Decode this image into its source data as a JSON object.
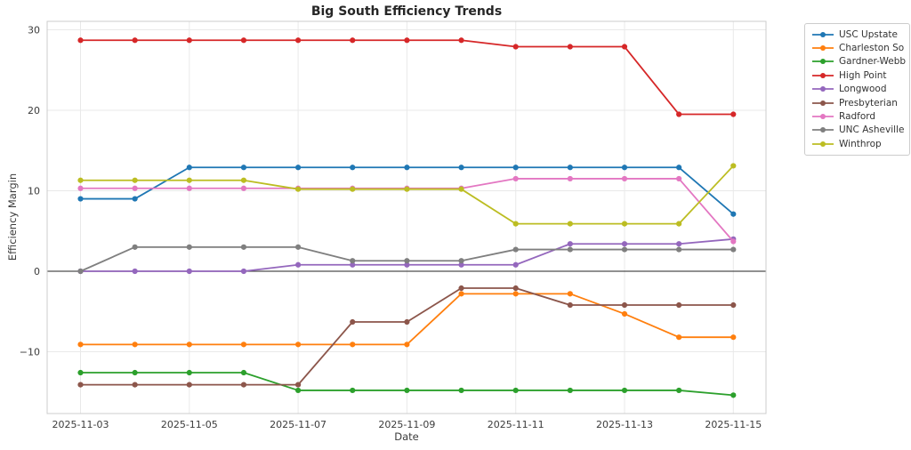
{
  "chart_data": {
    "type": "line",
    "title": "Big South Efficiency Trends",
    "xlabel": "Date",
    "ylabel": "Efficiency Margin",
    "x": [
      "2025-11-03",
      "2025-11-04",
      "2025-11-05",
      "2025-11-06",
      "2025-11-07",
      "2025-11-08",
      "2025-11-09",
      "2025-11-10",
      "2025-11-11",
      "2025-11-12",
      "2025-11-13",
      "2025-11-14",
      "2025-11-15"
    ],
    "x_tick_indices": [
      0,
      2,
      4,
      6,
      8,
      10,
      12
    ],
    "x_tick_labels": [
      "2025-11-03",
      "2025-11-05",
      "2025-11-07",
      "2025-11-09",
      "2025-11-11",
      "2025-11-13",
      "2025-11-15"
    ],
    "y_ticks": [
      30,
      20,
      10,
      0,
      -10
    ],
    "y_tick_labels": [
      "30",
      "20",
      "10",
      "0",
      "−10"
    ],
    "ylim": [
      -17.7,
      31.1
    ],
    "grid": true,
    "zero_line": true,
    "legend_position": "outside-right",
    "series": [
      {
        "name": "USC Upstate",
        "color": "#1f77b4",
        "values": [
          9.0,
          9.0,
          12.9,
          12.9,
          12.9,
          12.9,
          12.9,
          12.9,
          12.9,
          12.9,
          12.9,
          12.9,
          7.1
        ]
      },
      {
        "name": "Charleston So",
        "color": "#ff7f0e",
        "values": [
          -9.1,
          -9.1,
          -9.1,
          -9.1,
          -9.1,
          -9.1,
          -9.1,
          -2.8,
          -2.8,
          -2.8,
          -5.3,
          -8.2,
          -8.2
        ]
      },
      {
        "name": "Gardner-Webb",
        "color": "#2ca02c",
        "values": [
          -12.6,
          -12.6,
          -12.6,
          -12.6,
          -14.8,
          -14.8,
          -14.8,
          -14.8,
          -14.8,
          -14.8,
          -14.8,
          -14.8,
          -15.4
        ]
      },
      {
        "name": "High Point",
        "color": "#d62728",
        "values": [
          28.7,
          28.7,
          28.7,
          28.7,
          28.7,
          28.7,
          28.7,
          28.7,
          27.9,
          27.9,
          27.9,
          19.5,
          19.5
        ]
      },
      {
        "name": "Longwood",
        "color": "#9467bd",
        "values": [
          0.0,
          0.0,
          0.0,
          0.0,
          0.8,
          0.8,
          0.8,
          0.8,
          0.8,
          3.4,
          3.4,
          3.4,
          4.0
        ]
      },
      {
        "name": "Presbyterian",
        "color": "#8c564b",
        "values": [
          -14.1,
          -14.1,
          -14.1,
          -14.1,
          -14.1,
          -6.3,
          -6.3,
          -2.1,
          -2.1,
          -4.2,
          -4.2,
          -4.2,
          -4.2
        ]
      },
      {
        "name": "Radford",
        "color": "#e377c2",
        "values": [
          10.3,
          10.3,
          10.3,
          10.3,
          10.3,
          10.3,
          10.3,
          10.3,
          11.5,
          11.5,
          11.5,
          11.5,
          3.7
        ]
      },
      {
        "name": "UNC Asheville",
        "color": "#7f7f7f",
        "values": [
          0.0,
          3.0,
          3.0,
          3.0,
          3.0,
          1.3,
          1.3,
          1.3,
          2.7,
          2.7,
          2.7,
          2.7,
          2.7
        ]
      },
      {
        "name": "Winthrop",
        "color": "#bcbd22",
        "values": [
          11.3,
          11.3,
          11.3,
          11.3,
          10.2,
          10.2,
          10.2,
          10.2,
          5.9,
          5.9,
          5.9,
          5.9,
          13.1
        ]
      }
    ],
    "style": {
      "grid_color": "#e9e9e9",
      "spine_color": "#cccccc",
      "zero_line_color": "#4d4d4d",
      "tick_label_color": "#3b3b3b",
      "plot_background": "#ffffff"
    }
  }
}
